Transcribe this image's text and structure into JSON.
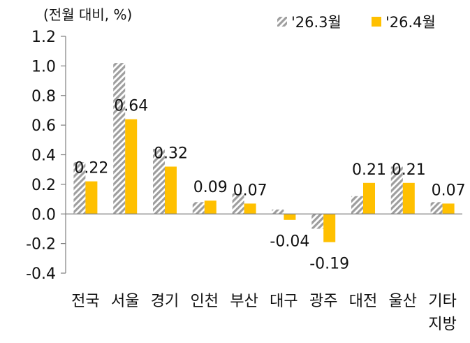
{
  "chart_data": {
    "type": "bar",
    "unit_label": "(전월 대비, %)",
    "categories": [
      [
        "전국"
      ],
      [
        "서울"
      ],
      [
        "경기"
      ],
      [
        "인천"
      ],
      [
        "부산"
      ],
      [
        "대구"
      ],
      [
        "광주"
      ],
      [
        "대전"
      ],
      [
        "울산"
      ],
      [
        "기타",
        "지방"
      ]
    ],
    "series": [
      {
        "name": "'26.3월",
        "color": "#9e9e9e",
        "pattern": "diagonal-hatch",
        "values": [
          0.35,
          1.02,
          0.44,
          0.08,
          0.14,
          0.03,
          -0.1,
          0.12,
          0.32,
          0.08
        ]
      },
      {
        "name": "'26.4월",
        "color": "#ffc000",
        "pattern": "solid",
        "values": [
          0.22,
          0.64,
          0.32,
          0.09,
          0.07,
          -0.04,
          -0.19,
          0.21,
          0.21,
          0.07
        ]
      }
    ],
    "data_labels": [
      "0.22",
      "0.64",
      "0.32",
      "0.09",
      "0.07",
      "-0.04",
      "-0.19",
      "0.21",
      "0.21",
      "0.07"
    ],
    "yticks": [
      "1.2",
      "1.0",
      "0.8",
      "0.6",
      "0.4",
      "0.2",
      "0.0",
      "-0.2",
      "-0.4"
    ],
    "ylim": [
      -0.4,
      1.2
    ],
    "grid": false,
    "legend_position": "top-right"
  }
}
